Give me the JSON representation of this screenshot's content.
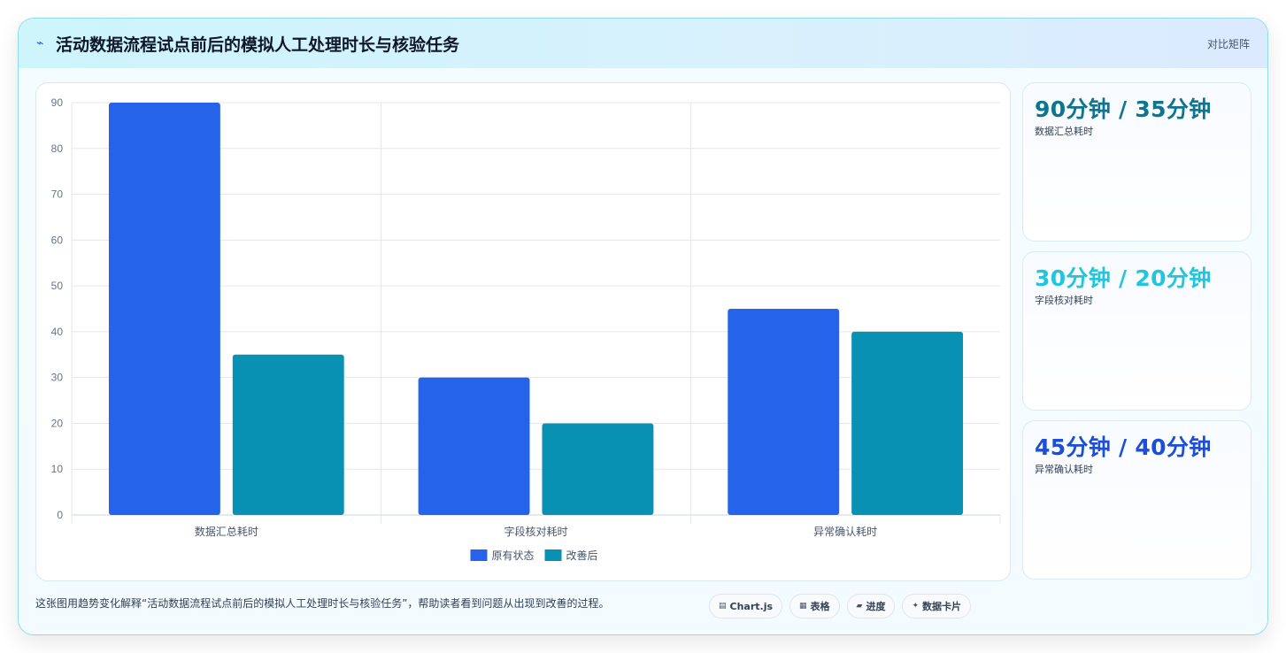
{
  "header": {
    "icon": "chart-line-icon",
    "title": "活动数据流程试点前后的模拟人工处理时长与核验任务",
    "tag": "对比矩阵"
  },
  "chart_data": {
    "type": "bar",
    "categories": [
      "数据汇总耗时",
      "字段核对耗时",
      "异常确认耗时"
    ],
    "series": [
      {
        "name": "原有状态",
        "values": [
          90,
          30,
          45
        ],
        "color": "#2563eb"
      },
      {
        "name": "改善后",
        "values": [
          35,
          20,
          40
        ],
        "color": "#0891b2"
      }
    ],
    "ylim": [
      0,
      90
    ],
    "yticks": [
      0,
      10,
      20,
      30,
      40,
      50,
      60,
      70,
      80,
      90
    ],
    "grid": true,
    "legend": "bottom"
  },
  "kpis": [
    {
      "value": "90分钟 / 35分钟",
      "label": "数据汇总耗时",
      "color": "#0e7490"
    },
    {
      "value": "30分钟 / 20分钟",
      "label": "字段核对耗时",
      "color": "#22c5dd"
    },
    {
      "value": "45分钟 / 40分钟",
      "label": "异常确认耗时",
      "color": "#1d4ed8"
    }
  ],
  "footer": {
    "note": "这张图用趋势变化解释“活动数据流程试点前后的模拟人工处理时长与核验任务”，帮助读者看到问题从出现到改善的过程。",
    "chips": [
      {
        "icon": "chart-icon",
        "glyph": "▤",
        "label": "Chart.js"
      },
      {
        "icon": "table-icon",
        "glyph": "▦",
        "label": "表格"
      },
      {
        "icon": "progress-icon",
        "glyph": "▰",
        "label": "进度"
      },
      {
        "icon": "sparkle-icon",
        "glyph": "✦",
        "label": "数据卡片"
      }
    ]
  }
}
